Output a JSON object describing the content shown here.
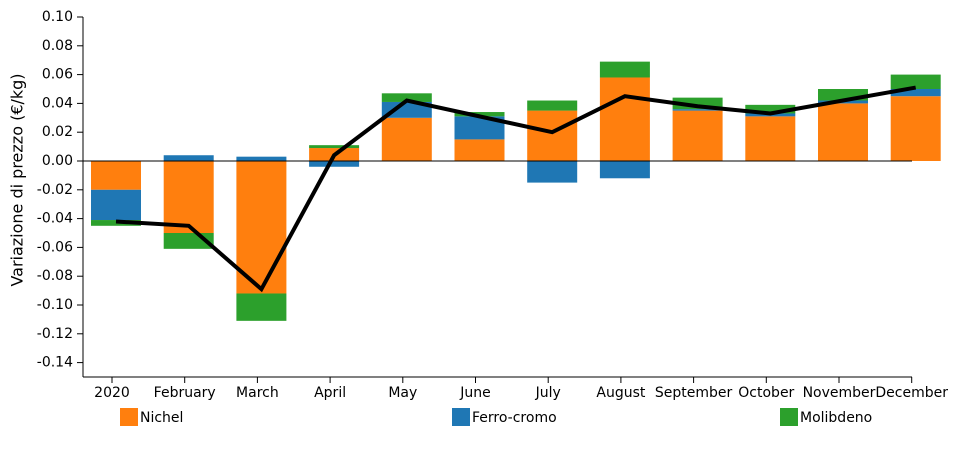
{
  "chart_data": {
    "type": "stacked-bar-line",
    "y_label": "Variazione di prezzo (€/kg)",
    "categories": [
      "2020",
      "February",
      "March",
      "April",
      "May",
      "June",
      "July",
      "August",
      "September",
      "October",
      "November",
      "December"
    ],
    "series": [
      {
        "name": "Nichel",
        "color": "#ff7f0e",
        "values": [
          -0.02,
          -0.05,
          -0.092,
          0.009,
          0.03,
          0.015,
          0.035,
          0.058,
          0.035,
          0.031,
          0.04,
          0.045
        ]
      },
      {
        "name": "Ferro-cromo",
        "color": "#1f77b4",
        "values": [
          -0.021,
          0.004,
          0.003,
          -0.004,
          0.011,
          0.016,
          -0.015,
          -0.012,
          0.001,
          0.002,
          0.002,
          0.005
        ]
      },
      {
        "name": "Molibdeno",
        "color": "#2ca02c",
        "values": [
          -0.004,
          -0.011,
          -0.019,
          0.002,
          0.006,
          0.003,
          0.007,
          0.011,
          0.008,
          0.006,
          0.008,
          0.01
        ]
      }
    ],
    "line": {
      "color": "#000000",
      "values": [
        -0.042,
        -0.045,
        -0.089,
        0.004,
        0.042,
        0.031,
        0.02,
        0.045,
        0.038,
        0.033,
        0.042,
        0.051
      ]
    },
    "ylim": [
      -0.15,
      0.1
    ],
    "yticks": [
      {
        "value": 0.1,
        "label": "0.10"
      },
      {
        "value": 0.08,
        "label": "0.08"
      },
      {
        "value": 0.06,
        "label": "0.06"
      },
      {
        "value": 0.04,
        "label": "0.04"
      },
      {
        "value": 0.02,
        "label": "0.02"
      },
      {
        "value": 0,
        "label": "0.00"
      },
      {
        "value": -0.02,
        "label": "-0.02"
      },
      {
        "value": -0.04,
        "label": "-0.04"
      },
      {
        "value": -0.06,
        "label": "-0.06"
      },
      {
        "value": -0.08,
        "label": "-0.08"
      },
      {
        "value": -0.1,
        "label": "-0.10"
      },
      {
        "value": -0.12,
        "label": "-0.12"
      },
      {
        "value": -0.14,
        "label": "-0.14"
      }
    ],
    "legend": "bottom"
  }
}
